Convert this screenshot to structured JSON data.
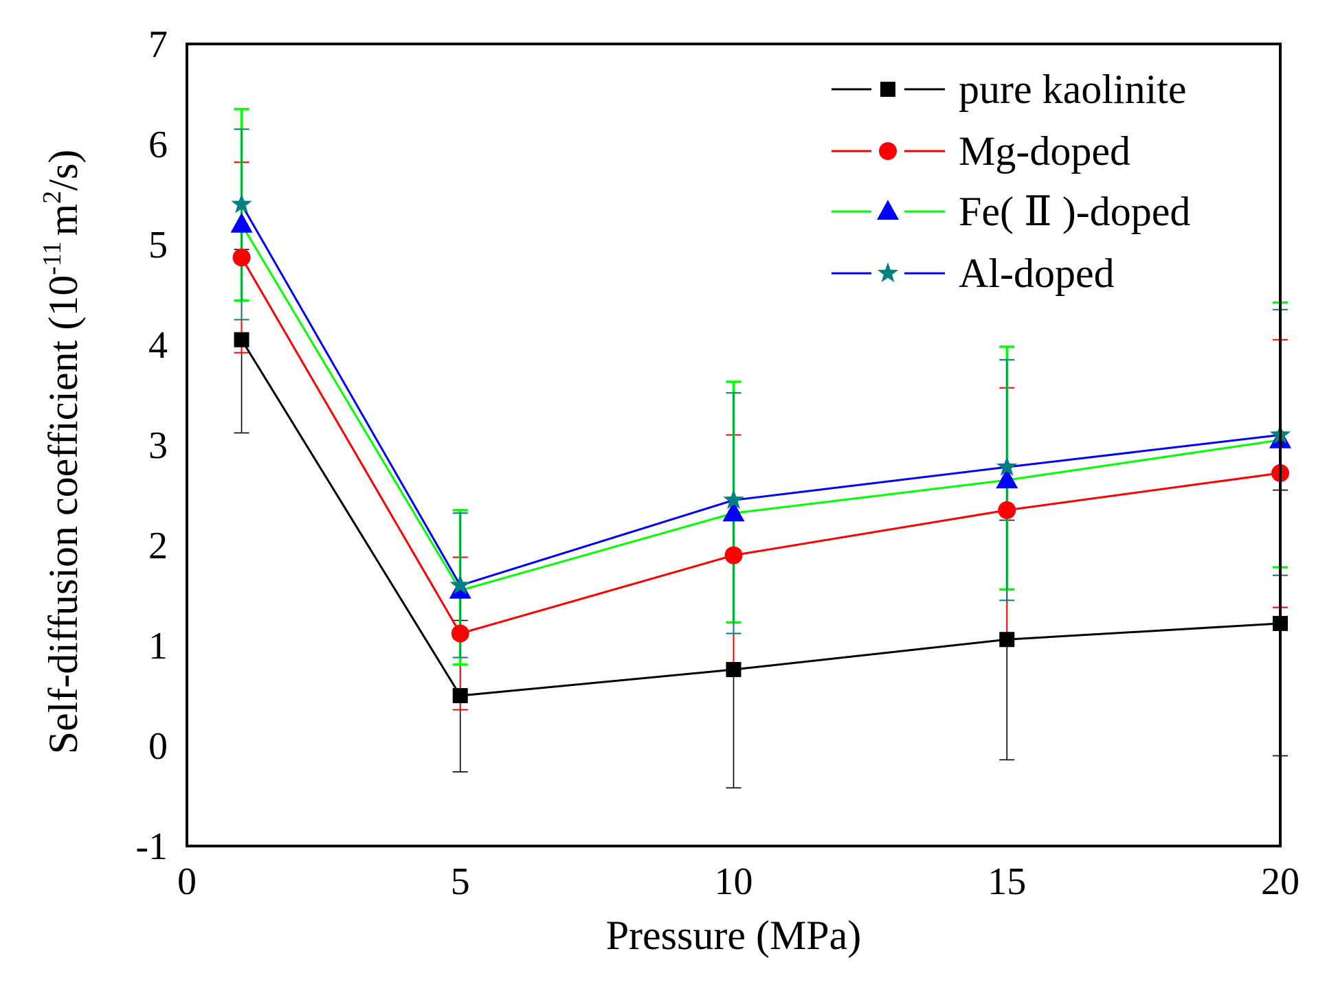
{
  "chart_data": {
    "type": "line",
    "title": "",
    "xlabel": "Pressure (MPa)",
    "ylabel": {
      "prefix": "Self-diffusion coefficient (10",
      "exp1": "-11",
      "middle": "m",
      "exp2": "2",
      "suffix": "/s)"
    },
    "xlim": [
      0,
      20
    ],
    "ylim": [
      -1,
      7
    ],
    "xticks": [
      "0",
      "5",
      "10",
      "15",
      "20"
    ],
    "xtick_values": [
      0,
      5,
      10,
      15,
      20
    ],
    "yticks": [
      "-1",
      "0",
      "1",
      "2",
      "3",
      "4",
      "5",
      "6",
      "7"
    ],
    "ytick_values": [
      -1,
      0,
      1,
      2,
      3,
      4,
      5,
      6,
      7
    ],
    "grid": false,
    "legend_position": "top-right",
    "x": [
      1,
      5,
      10,
      15,
      20
    ],
    "series": [
      {
        "name": "pure kaolinite",
        "color": "#000000",
        "marker": "square",
        "values": [
          4.05,
          0.5,
          0.76,
          1.06,
          1.22
        ],
        "err_low": [
          3.12,
          -0.26,
          -0.42,
          -0.14,
          -0.1
        ],
        "err_high": [
          4.95,
          1.25,
          1.95,
          2.25,
          2.55
        ]
      },
      {
        "name": "Mg-doped",
        "color": "#ff0000",
        "marker": "circle",
        "values": [
          4.87,
          1.12,
          1.9,
          2.35,
          2.72
        ],
        "err_low": [
          3.92,
          0.36,
          0.7,
          1.12,
          1.38
        ],
        "err_high": [
          5.82,
          1.88,
          3.1,
          3.57,
          4.05
        ]
      },
      {
        "name": "Fe( Ⅱ )-doped",
        "color": "#00ff00",
        "marker": "triangle",
        "values": [
          5.2,
          1.55,
          2.32,
          2.65,
          3.05
        ],
        "err_low": [
          4.44,
          0.81,
          1.23,
          1.56,
          1.78
        ],
        "err_high": [
          6.35,
          2.35,
          3.63,
          3.98,
          4.42
        ]
      },
      {
        "name": "Al-doped",
        "color": "#0000ff",
        "marker_color": "#008080",
        "marker": "star",
        "values": [
          5.4,
          1.6,
          2.45,
          2.78,
          3.1
        ],
        "err_low": [
          4.25,
          0.88,
          1.12,
          1.45,
          1.7
        ],
        "err_high": [
          6.15,
          2.32,
          3.52,
          3.85,
          4.35
        ]
      }
    ]
  }
}
